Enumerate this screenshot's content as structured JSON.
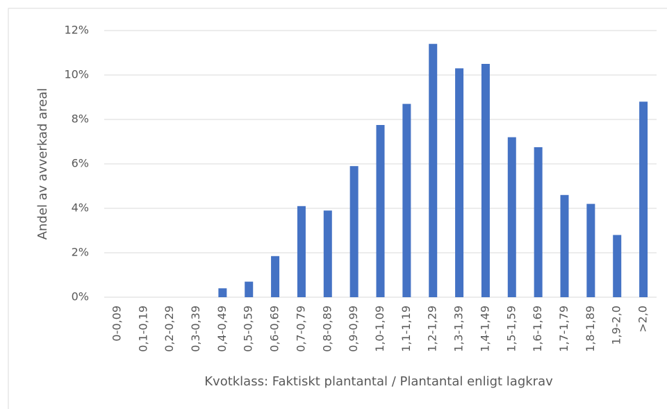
{
  "chart_data": {
    "type": "bar",
    "x_label": "Kvotklass: Faktiskt plantantal / Plantantal enligt lagkrav",
    "y_label": "Andel av avverkad areal",
    "categories": [
      "0-0,09",
      "0,1-0,19",
      "0,2-0,29",
      "0,3-0,39",
      "0,4-0,49",
      "0,5-0,59",
      "0,6-0,69",
      "0,7-0,79",
      "0,8-0,89",
      "0,9-0,99",
      "1,0-1,09",
      "1,1-1,19",
      "1,2-1,29",
      "1,3-1,39",
      "1,4-1,49",
      "1,5-1,59",
      "1,6-1,69",
      "1,7-1,79",
      "1,8-1,89",
      "1,9-2,0",
      ">2,0"
    ],
    "values": [
      0,
      0,
      0,
      0,
      0.4,
      0.7,
      1.85,
      4.1,
      3.9,
      5.9,
      7.75,
      8.7,
      11.4,
      10.3,
      10.5,
      7.2,
      6.75,
      4.6,
      4.2,
      2.8,
      8.8
    ],
    "color": "#4472c4",
    "ylim": [
      0,
      12
    ],
    "yticks": [
      {
        "value": 0,
        "label": "0%"
      },
      {
        "value": 2,
        "label": "2%"
      },
      {
        "value": 4,
        "label": "4%"
      },
      {
        "value": 6,
        "label": "6%"
      },
      {
        "value": 8,
        "label": "8%"
      },
      {
        "value": 10,
        "label": "10%"
      },
      {
        "value": 12,
        "label": "12%"
      }
    ],
    "grid": true
  }
}
